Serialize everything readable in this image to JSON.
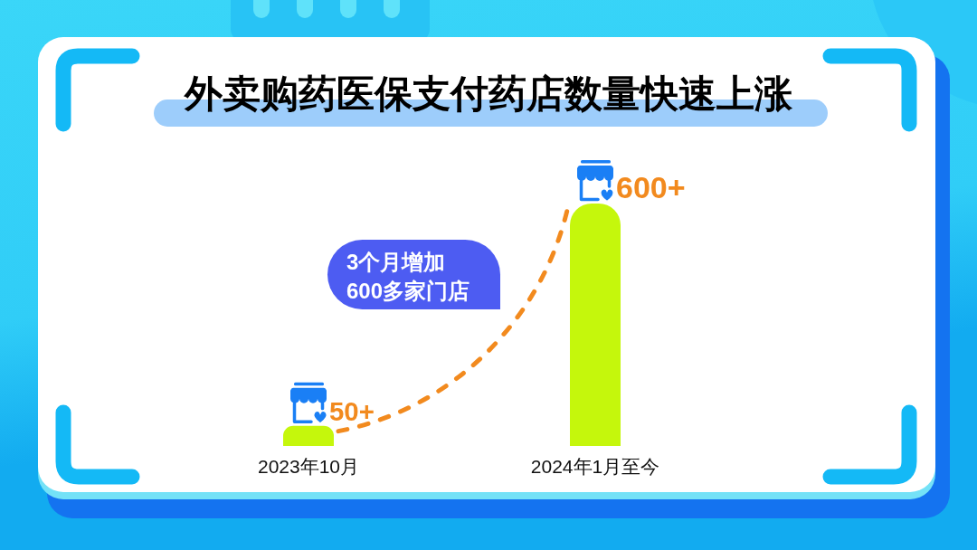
{
  "chart_data": {
    "type": "bar",
    "title": "外卖购药医保支付药店数量快速上涨",
    "categories": [
      "2023年10月",
      "2024年1月至今"
    ],
    "values": [
      50,
      600
    ],
    "value_labels": [
      "50+",
      "600+"
    ],
    "color": "#c5f70c",
    "annotations": [
      "3个月增加\n600多家门店"
    ]
  }
}
